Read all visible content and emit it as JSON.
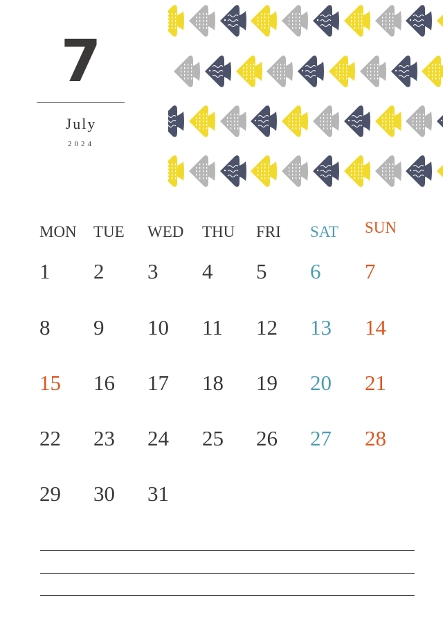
{
  "header": {
    "month_number": "7",
    "month_name": "July",
    "year": "2024"
  },
  "colors": {
    "text": "#3b3838",
    "saturday": "#4a9db0",
    "sunday": "#e0561f",
    "fish_yellow": "#f2da2c",
    "fish_gray": "#b6b6b6",
    "fish_navy": "#4b5269"
  },
  "fish_rows": [
    [
      "yellow",
      "gray",
      "navy",
      "yellow",
      "gray",
      "navy",
      "yellow",
      "gray",
      "navy",
      "yellow"
    ],
    [
      "gray",
      "navy",
      "yellow",
      "gray",
      "navy",
      "yellow",
      "gray",
      "navy",
      "yellow"
    ],
    [
      "navy",
      "yellow",
      "gray",
      "navy",
      "yellow",
      "gray",
      "navy",
      "yellow",
      "gray",
      "navy"
    ],
    [
      "yellow",
      "gray",
      "navy",
      "yellow",
      "gray",
      "navy",
      "yellow",
      "gray",
      "navy",
      "yellow"
    ]
  ],
  "calendar": {
    "weekdays": [
      "MON",
      "TUE",
      "WED",
      "THU",
      "FRI",
      "SAT",
      "SUN"
    ],
    "weeks": [
      [
        "1",
        "2",
        "3",
        "4",
        "5",
        "6",
        "7"
      ],
      [
        "8",
        "9",
        "10",
        "11",
        "12",
        "13",
        "14"
      ],
      [
        "15",
        "16",
        "17",
        "18",
        "19",
        "20",
        "21"
      ],
      [
        "22",
        "23",
        "24",
        "25",
        "26",
        "27",
        "28"
      ],
      [
        "29",
        "30",
        "31",
        "",
        "",
        "",
        ""
      ]
    ],
    "holidays": [
      "15"
    ]
  }
}
